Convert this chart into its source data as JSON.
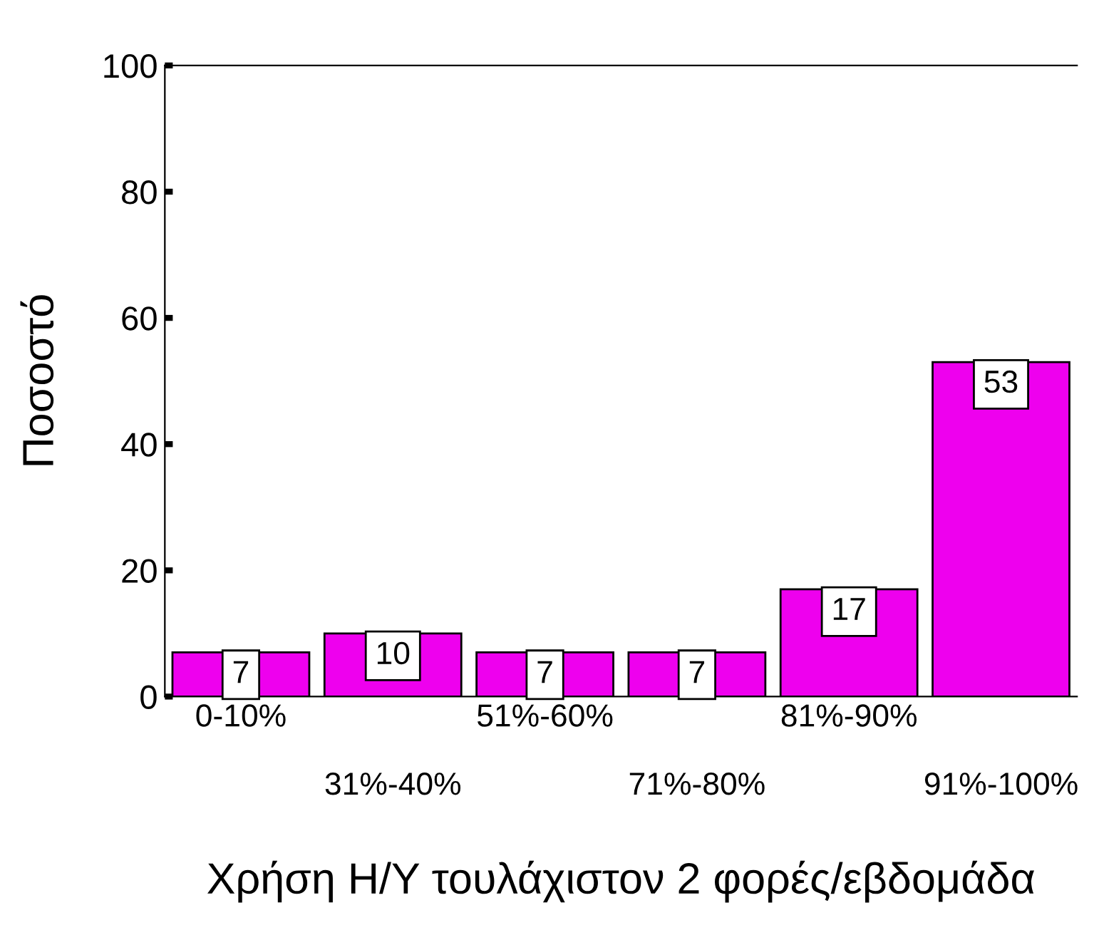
{
  "chart_data": {
    "type": "bar",
    "xlabel": "Χρήση Η/Υ τουλάχιστον 2 φορές/εβδομάδα",
    "ylabel": "Ποσοστό",
    "categories": [
      "0-10%",
      "31%-40%",
      "51%-60%",
      "71%-80%",
      "81%-90%",
      "91%-100%"
    ],
    "values": [
      7,
      10,
      7,
      7,
      17,
      53
    ],
    "color": "#ee00ee",
    "ylim": [
      0,
      100
    ],
    "yticks": [
      0,
      20,
      40,
      60,
      80,
      100
    ],
    "grid": false,
    "data_labels": true
  }
}
